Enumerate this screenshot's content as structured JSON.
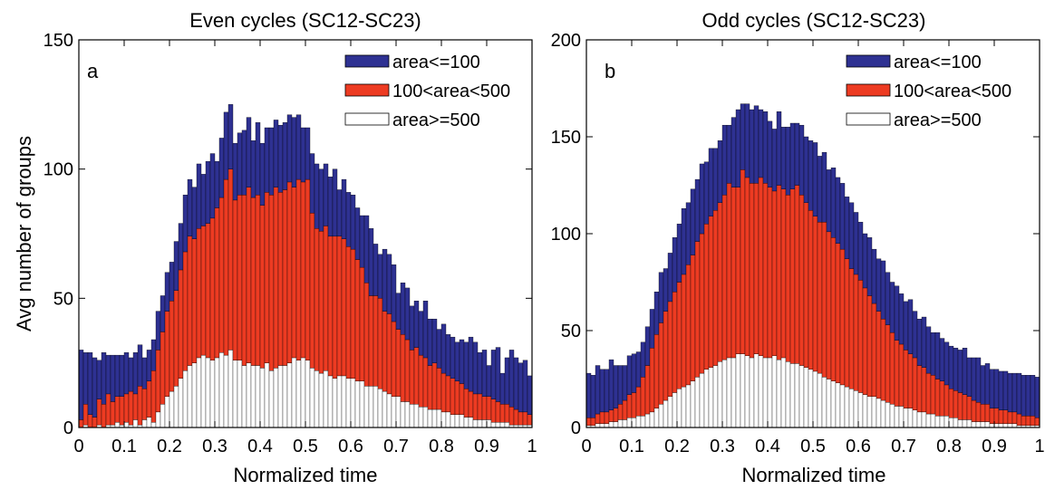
{
  "figure": {
    "ylabel": "Avg number of groups"
  },
  "legend": {
    "small": "area<=100",
    "medium": "100<area<500",
    "large": "area>=500"
  },
  "colors": {
    "small": "#2e3192",
    "medium": "#ed3b22",
    "large": "#ffffff"
  },
  "chart_data": [
    {
      "type": "bar",
      "stacked": true,
      "title": "Even cycles (SC12-SC23)",
      "panel_label": "a",
      "xlabel": "Normalized time",
      "ylabel": "Avg number of groups",
      "xlim": [
        0,
        1
      ],
      "ylim": [
        0,
        150
      ],
      "xticks": [
        "0",
        "0.1",
        "0.2",
        "0.3",
        "0.4",
        "0.5",
        "0.6",
        "0.7",
        "0.8",
        "0.9",
        "1"
      ],
      "yticks": [
        "0",
        "50",
        "100",
        "150"
      ],
      "legend_position": "top-right",
      "bin_width": 0.01,
      "x": [
        0.005,
        0.015,
        0.025,
        0.035,
        0.045,
        0.055,
        0.065,
        0.075,
        0.085,
        0.095,
        0.105,
        0.115,
        0.125,
        0.135,
        0.145,
        0.155,
        0.165,
        0.175,
        0.185,
        0.195,
        0.205,
        0.215,
        0.225,
        0.235,
        0.245,
        0.255,
        0.265,
        0.275,
        0.285,
        0.295,
        0.305,
        0.315,
        0.325,
        0.335,
        0.345,
        0.355,
        0.365,
        0.375,
        0.385,
        0.395,
        0.405,
        0.415,
        0.425,
        0.435,
        0.445,
        0.455,
        0.465,
        0.475,
        0.485,
        0.495,
        0.505,
        0.515,
        0.525,
        0.535,
        0.545,
        0.555,
        0.565,
        0.575,
        0.585,
        0.595,
        0.605,
        0.615,
        0.625,
        0.635,
        0.645,
        0.655,
        0.665,
        0.675,
        0.685,
        0.695,
        0.705,
        0.715,
        0.725,
        0.735,
        0.745,
        0.755,
        0.765,
        0.775,
        0.785,
        0.795,
        0.805,
        0.815,
        0.825,
        0.835,
        0.845,
        0.855,
        0.865,
        0.875,
        0.885,
        0.895,
        0.905,
        0.915,
        0.925,
        0.935,
        0.945,
        0.955,
        0.965,
        0.975,
        0.985,
        0.995
      ],
      "series": [
        {
          "name": "area>=500",
          "values": [
            0,
            1,
            0,
            0,
            1,
            0,
            1,
            1,
            2,
            1,
            2,
            1,
            3,
            1,
            3,
            4,
            2,
            6,
            9,
            12,
            14,
            16,
            19,
            22,
            24,
            25,
            27,
            28,
            27,
            26,
            27,
            29,
            28,
            30,
            26,
            26,
            24,
            25,
            24,
            24,
            23,
            25,
            22,
            23,
            24,
            24,
            25,
            27,
            26,
            27,
            26,
            23,
            22,
            21,
            22,
            20,
            19,
            20,
            20,
            19,
            19,
            18,
            18,
            16,
            16,
            16,
            15,
            14,
            13,
            12,
            12,
            10,
            10,
            9,
            9,
            8,
            8,
            7,
            7,
            7,
            6,
            6,
            5,
            5,
            5,
            4,
            4,
            3,
            3,
            3,
            3,
            2,
            2,
            2,
            2,
            1,
            1,
            1,
            1,
            1
          ]
        },
        {
          "name": "100<area<500",
          "values": [
            3,
            8,
            5,
            4,
            10,
            9,
            12,
            9,
            10,
            11,
            11,
            13,
            10,
            15,
            12,
            14,
            20,
            24,
            28,
            33,
            35,
            37,
            42,
            46,
            50,
            48,
            50,
            50,
            52,
            55,
            58,
            60,
            68,
            70,
            62,
            64,
            66,
            68,
            65,
            66,
            63,
            66,
            68,
            70,
            67,
            68,
            70,
            66,
            70,
            68,
            70,
            60,
            55,
            55,
            56,
            54,
            55,
            54,
            53,
            51,
            50,
            47,
            44,
            40,
            35,
            35,
            35,
            31,
            31,
            29,
            26,
            26,
            24,
            21,
            22,
            20,
            19,
            17,
            18,
            16,
            15,
            14,
            14,
            13,
            12,
            11,
            10,
            10,
            10,
            9,
            9,
            9,
            8,
            7,
            7,
            7,
            6,
            5,
            5,
            4
          ]
        },
        {
          "name": "area<=100",
          "values": [
            27,
            20,
            24,
            23,
            15,
            20,
            15,
            18,
            16,
            16,
            16,
            13,
            16,
            16,
            12,
            12,
            12,
            15,
            14,
            15,
            15,
            19,
            18,
            22,
            22,
            20,
            25,
            20,
            24,
            25,
            18,
            23,
            26,
            25,
            22,
            24,
            25,
            27,
            22,
            28,
            24,
            25,
            26,
            26,
            26,
            26,
            26,
            27,
            25,
            21,
            20,
            23,
            25,
            24,
            24,
            23,
            26,
            18,
            23,
            21,
            21,
            20,
            20,
            26,
            26,
            20,
            17,
            24,
            23,
            22,
            14,
            20,
            20,
            17,
            18,
            17,
            22,
            18,
            17,
            15,
            19,
            16,
            16,
            15,
            17,
            18,
            21,
            20,
            16,
            18,
            12,
            19,
            21,
            12,
            18,
            22,
            20,
            19,
            20,
            15
          ]
        }
      ]
    },
    {
      "type": "bar",
      "stacked": true,
      "title": "Odd cycles (SC12-SC23)",
      "panel_label": "b",
      "xlabel": "Normalized time",
      "ylabel": "",
      "xlim": [
        0,
        1
      ],
      "ylim": [
        0,
        200
      ],
      "xticks": [
        "0",
        "0.1",
        "0.2",
        "0.3",
        "0.4",
        "0.5",
        "0.6",
        "0.7",
        "0.8",
        "0.9",
        "1"
      ],
      "yticks": [
        "0",
        "50",
        "100",
        "150",
        "200"
      ],
      "legend_position": "top-right",
      "bin_width": 0.01,
      "x": [
        0.005,
        0.015,
        0.025,
        0.035,
        0.045,
        0.055,
        0.065,
        0.075,
        0.085,
        0.095,
        0.105,
        0.115,
        0.125,
        0.135,
        0.145,
        0.155,
        0.165,
        0.175,
        0.185,
        0.195,
        0.205,
        0.215,
        0.225,
        0.235,
        0.245,
        0.255,
        0.265,
        0.275,
        0.285,
        0.295,
        0.305,
        0.315,
        0.325,
        0.335,
        0.345,
        0.355,
        0.365,
        0.375,
        0.385,
        0.395,
        0.405,
        0.415,
        0.425,
        0.435,
        0.445,
        0.455,
        0.465,
        0.475,
        0.485,
        0.495,
        0.505,
        0.515,
        0.525,
        0.535,
        0.545,
        0.555,
        0.565,
        0.575,
        0.585,
        0.595,
        0.605,
        0.615,
        0.625,
        0.635,
        0.645,
        0.655,
        0.665,
        0.675,
        0.685,
        0.695,
        0.705,
        0.715,
        0.725,
        0.735,
        0.745,
        0.755,
        0.765,
        0.775,
        0.785,
        0.795,
        0.805,
        0.815,
        0.825,
        0.835,
        0.845,
        0.855,
        0.865,
        0.875,
        0.885,
        0.895,
        0.905,
        0.915,
        0.925,
        0.935,
        0.945,
        0.955,
        0.965,
        0.975,
        0.985,
        0.995
      ],
      "series": [
        {
          "name": "area>=500",
          "values": [
            1,
            1,
            2,
            2,
            2,
            3,
            3,
            4,
            4,
            5,
            5,
            6,
            6,
            7,
            8,
            10,
            12,
            14,
            16,
            18,
            20,
            21,
            22,
            24,
            26,
            28,
            30,
            31,
            32,
            34,
            35,
            36,
            36,
            38,
            38,
            37,
            36,
            38,
            37,
            36,
            36,
            37,
            35,
            36,
            34,
            33,
            33,
            32,
            31,
            30,
            29,
            28,
            26,
            25,
            24,
            23,
            22,
            21,
            20,
            19,
            18,
            17,
            16,
            16,
            15,
            14,
            13,
            12,
            11,
            11,
            10,
            10,
            9,
            8,
            8,
            7,
            7,
            6,
            6,
            6,
            5,
            5,
            4,
            4,
            4,
            3,
            3,
            3,
            3,
            2,
            2,
            2,
            2,
            2,
            2,
            1,
            1,
            1,
            1,
            1
          ]
        },
        {
          "name": "100<area<500",
          "values": [
            4,
            4,
            5,
            6,
            6,
            6,
            7,
            8,
            10,
            12,
            13,
            15,
            20,
            25,
            33,
            38,
            42,
            46,
            49,
            52,
            55,
            58,
            62,
            65,
            70,
            72,
            75,
            78,
            80,
            82,
            85,
            90,
            88,
            86,
            95,
            92,
            90,
            88,
            92,
            90,
            88,
            85,
            90,
            87,
            86,
            90,
            92,
            88,
            85,
            82,
            80,
            78,
            80,
            76,
            74,
            72,
            70,
            66,
            62,
            60,
            58,
            55,
            52,
            48,
            45,
            42,
            40,
            37,
            34,
            32,
            30,
            28,
            27,
            24,
            23,
            21,
            20,
            19,
            18,
            16,
            15,
            14,
            14,
            13,
            12,
            11,
            10,
            9,
            9,
            8,
            8,
            7,
            7,
            6,
            6,
            6,
            5,
            5,
            5,
            4
          ]
        },
        {
          "name": "area<=100",
          "values": [
            23,
            22,
            25,
            22,
            22,
            26,
            22,
            20,
            18,
            20,
            20,
            18,
            18,
            20,
            20,
            22,
            26,
            22,
            25,
            28,
            30,
            34,
            32,
            34,
            32,
            36,
            32,
            35,
            32,
            32,
            36,
            30,
            36,
            40,
            34,
            38,
            38,
            40,
            35,
            37,
            34,
            32,
            38,
            32,
            35,
            34,
            32,
            36,
            34,
            36,
            38,
            34,
            36,
            32,
            36,
            34,
            34,
            32,
            34,
            32,
            30,
            28,
            30,
            28,
            27,
            30,
            27,
            26,
            28,
            26,
            25,
            28,
            24,
            24,
            26,
            24,
            22,
            24,
            22,
            22,
            22,
            22,
            22,
            24,
            20,
            22,
            23,
            20,
            21,
            20,
            20,
            20,
            20,
            20,
            20,
            21,
            21,
            21,
            21,
            21
          ]
        }
      ]
    }
  ]
}
